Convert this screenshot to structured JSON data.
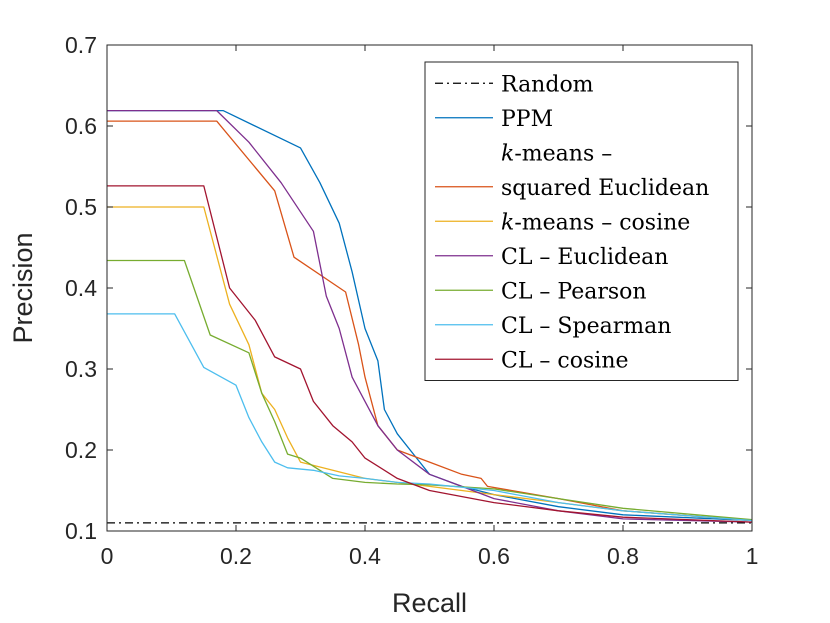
{
  "chart_data": {
    "type": "line",
    "title": "",
    "xlabel": "Recall",
    "ylabel": "Precision",
    "xlim": [
      0,
      1
    ],
    "ylim": [
      0.1,
      0.7
    ],
    "xticks": [
      0,
      0.2,
      0.4,
      0.6,
      0.8,
      1
    ],
    "xtick_labels": [
      "0",
      "0.2",
      "0.4",
      "0.6",
      "0.8",
      "1"
    ],
    "yticks": [
      0.1,
      0.2,
      0.3,
      0.4,
      0.5,
      0.6,
      0.7
    ],
    "ytick_labels": [
      "0.1",
      "0.2",
      "0.3",
      "0.4",
      "0.5",
      "0.6",
      "0.7"
    ],
    "grid": false,
    "legend_position": "top-right",
    "series": [
      {
        "name": "Random",
        "legend": [
          "Random"
        ],
        "color": "#000000",
        "dash": "dashdot",
        "x": [
          0,
          1
        ],
        "y": [
          0.11,
          0.11
        ]
      },
      {
        "name": "PPM",
        "legend": [
          "PPM"
        ],
        "color": "#0072BD",
        "dash": "solid",
        "x": [
          0,
          0.18,
          0.3,
          0.33,
          0.36,
          0.38,
          0.4,
          0.42,
          0.43,
          0.45,
          0.48,
          0.5,
          0.55,
          0.6,
          0.7,
          0.8,
          1.0
        ],
        "y": [
          0.619,
          0.619,
          0.573,
          0.53,
          0.48,
          0.42,
          0.35,
          0.31,
          0.25,
          0.22,
          0.19,
          0.17,
          0.155,
          0.145,
          0.13,
          0.12,
          0.113
        ]
      },
      {
        "name": "k-means – squared Euclidean",
        "legend": [
          "k-means –",
          "squared Euclidean"
        ],
        "italic_prefix": "k",
        "color": "#D95319",
        "dash": "solid",
        "x": [
          0,
          0.17,
          0.26,
          0.29,
          0.37,
          0.39,
          0.4,
          0.42,
          0.45,
          0.5,
          0.55,
          0.58,
          0.59,
          0.7,
          0.8,
          1.0
        ],
        "y": [
          0.606,
          0.606,
          0.52,
          0.438,
          0.395,
          0.33,
          0.29,
          0.23,
          0.2,
          0.185,
          0.17,
          0.165,
          0.155,
          0.14,
          0.125,
          0.113
        ]
      },
      {
        "name": "k-means – cosine",
        "legend": [
          "k-means – cosine"
        ],
        "italic_prefix": "k",
        "color": "#EDB120",
        "dash": "solid",
        "x": [
          0,
          0.15,
          0.19,
          0.22,
          0.24,
          0.26,
          0.28,
          0.3,
          0.35,
          0.4,
          0.45,
          0.5,
          0.6,
          0.7,
          0.8,
          1.0
        ],
        "y": [
          0.5,
          0.5,
          0.38,
          0.33,
          0.27,
          0.25,
          0.215,
          0.185,
          0.175,
          0.165,
          0.16,
          0.155,
          0.145,
          0.135,
          0.125,
          0.113
        ]
      },
      {
        "name": "CL – Euclidean",
        "legend": [
          "CL – Euclidean"
        ],
        "color": "#7E2F8E",
        "dash": "solid",
        "x": [
          0,
          0.17,
          0.22,
          0.27,
          0.32,
          0.34,
          0.36,
          0.38,
          0.4,
          0.42,
          0.45,
          0.5,
          0.55,
          0.6,
          0.7,
          0.8,
          1.0
        ],
        "y": [
          0.619,
          0.619,
          0.58,
          0.53,
          0.47,
          0.39,
          0.35,
          0.29,
          0.26,
          0.23,
          0.2,
          0.17,
          0.155,
          0.14,
          0.125,
          0.115,
          0.111
        ]
      },
      {
        "name": "CL – Pearson",
        "legend": [
          "CL – Pearson"
        ],
        "color": "#77AC30",
        "dash": "solid",
        "x": [
          0,
          0.12,
          0.16,
          0.22,
          0.24,
          0.26,
          0.28,
          0.3,
          0.35,
          0.4,
          0.45,
          0.5,
          0.6,
          0.7,
          0.8,
          1.0
        ],
        "y": [
          0.434,
          0.434,
          0.342,
          0.32,
          0.27,
          0.235,
          0.195,
          0.19,
          0.165,
          0.16,
          0.158,
          0.157,
          0.152,
          0.14,
          0.128,
          0.114
        ]
      },
      {
        "name": "CL – Spearman",
        "legend": [
          "CL – Spearman"
        ],
        "color": "#4DBEEE",
        "dash": "solid",
        "x": [
          0,
          0.105,
          0.15,
          0.2,
          0.22,
          0.24,
          0.26,
          0.28,
          0.32,
          0.36,
          0.4,
          0.45,
          0.5,
          0.6,
          0.7,
          0.8,
          1.0
        ],
        "y": [
          0.368,
          0.368,
          0.302,
          0.28,
          0.24,
          0.21,
          0.185,
          0.178,
          0.175,
          0.168,
          0.165,
          0.16,
          0.158,
          0.15,
          0.135,
          0.125,
          0.113
        ]
      },
      {
        "name": "CL – cosine",
        "legend": [
          "CL – cosine"
        ],
        "color": "#A2142F",
        "dash": "solid",
        "x": [
          0,
          0.15,
          0.19,
          0.23,
          0.26,
          0.3,
          0.32,
          0.35,
          0.38,
          0.4,
          0.45,
          0.5,
          0.6,
          0.7,
          0.8,
          1.0
        ],
        "y": [
          0.526,
          0.526,
          0.4,
          0.36,
          0.315,
          0.3,
          0.26,
          0.23,
          0.21,
          0.19,
          0.165,
          0.15,
          0.135,
          0.125,
          0.117,
          0.111
        ]
      }
    ]
  }
}
